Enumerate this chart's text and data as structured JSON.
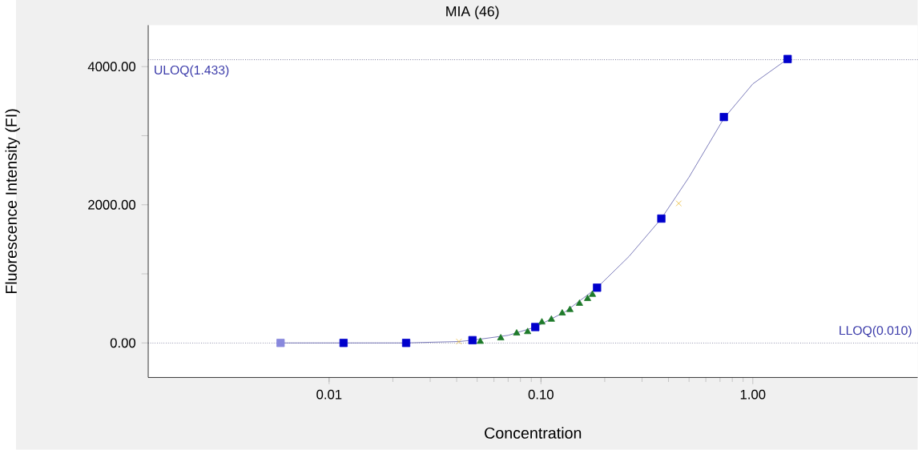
{
  "chart_data": {
    "type": "scatter",
    "title": "MIA (46)",
    "xlabel": "Concentration",
    "ylabel": "Fluorescence Intensity (FI)",
    "log": "x",
    "grid": false,
    "xlim": [
      0.0014,
      6.0
    ],
    "ylim": [
      -500,
      4600
    ],
    "xticks": [
      {
        "value": 0.01,
        "label": "0.01"
      },
      {
        "value": 0.1,
        "label": "0.10"
      },
      {
        "value": 1,
        "label": "1.00"
      }
    ],
    "yticks": [
      {
        "value": 0,
        "label": "0.00"
      },
      {
        "value": 1000,
        "label": null
      },
      {
        "value": 2000,
        "label": "2000.00"
      },
      {
        "value": 3000,
        "label": null
      },
      {
        "value": 4000,
        "label": "4000.00"
      }
    ],
    "series": [
      {
        "type": "line",
        "color": "#5a5aa8",
        "marker": "none",
        "x": [
          0.0059,
          0.0117,
          0.0231,
          0.03,
          0.041,
          0.0475,
          0.07,
          0.094,
          0.13,
          0.184,
          0.26,
          0.37,
          0.5,
          0.73,
          1.0,
          1.46
        ],
        "values": [
          0,
          0,
          0,
          10,
          20,
          40,
          110,
          230,
          450,
          800,
          1250,
          1800,
          2400,
          3250,
          3750,
          4110
        ]
      },
      {
        "color": "#0000cc",
        "marker": "square",
        "x": [
          0.0117,
          0.0231,
          0.0475,
          0.094,
          0.184,
          0.37,
          0.73,
          1.46
        ],
        "values": [
          0,
          0,
          40,
          230,
          800,
          1800,
          3270,
          4110
        ]
      },
      {
        "color": "#8888dd",
        "marker": "square",
        "x": [
          0.0059
        ],
        "values": [
          0
        ]
      },
      {
        "color": "#e8b830",
        "marker": "cross",
        "x": [
          0.041,
          0.447
        ],
        "values": [
          20,
          2020
        ]
      },
      {
        "color": "#1e7a2a",
        "marker": "triangle",
        "x": [
          0.0517,
          0.0646,
          0.0768,
          0.0865,
          0.101,
          0.112,
          0.126,
          0.137,
          0.152,
          0.166,
          0.175
        ],
        "values": [
          20,
          70,
          140,
          160,
          300,
          340,
          430,
          480,
          570,
          640,
          700
        ]
      }
    ],
    "ref_lines": [
      {
        "axis": "y",
        "value": 4100,
        "label": "ULOQ(1.433)",
        "color": "#333366",
        "line_style": "dotted"
      },
      {
        "axis": "y",
        "value": 0,
        "label": "LLOQ(0.010)",
        "color": "#333366",
        "line_style": "dotted"
      }
    ]
  }
}
